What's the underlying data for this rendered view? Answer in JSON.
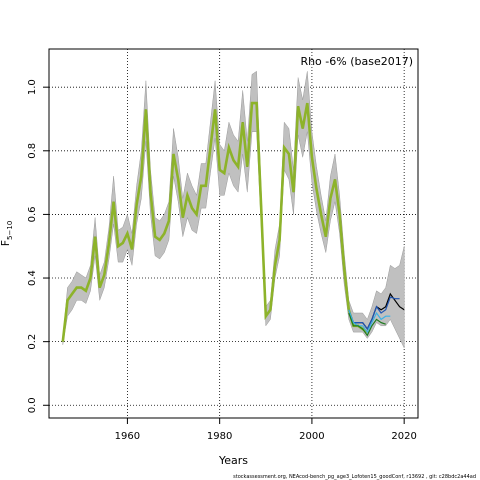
{
  "chart_data": {
    "type": "line",
    "xlabel": "Years",
    "ylabel_main": "F",
    "ylabel_sub": "5−10",
    "annotation": "Rho -6% (base2017)",
    "footer": "stockassessment.org, NEAcod-bench_pg_age3_Lofoten15_goodConf, r13692 , git: c28bdc2a44ad",
    "xlim": [
      1943,
      2023
    ],
    "ylim": [
      -0.04,
      1.12
    ],
    "xticks": [
      1960,
      1980,
      2000,
      2020
    ],
    "yticks": [
      0.0,
      0.2,
      0.4,
      0.6,
      0.8,
      1.0
    ],
    "ytick_labels": [
      "0.0",
      "0.2",
      "0.4",
      "0.6",
      "0.8",
      "1.0"
    ],
    "grid": "dotted",
    "colors": {
      "band": "#c0c0c0",
      "main": "#000000",
      "retro": "#8db32a",
      "peel1": "#1f55b4",
      "peel2": "#3cb1e6",
      "peel3": "#1e7a1e"
    },
    "main": {
      "x": [
        1946,
        1947,
        1948,
        1949,
        1950,
        1951,
        1952,
        1953,
        1954,
        1955,
        1956,
        1957,
        1958,
        1959,
        1960,
        1961,
        1962,
        1963,
        1964,
        1965,
        1966,
        1967,
        1968,
        1969,
        1970,
        1971,
        1972,
        1973,
        1974,
        1975,
        1976,
        1977,
        1978,
        1979,
        1980,
        1981,
        1982,
        1983,
        1984,
        1985,
        1986,
        1987,
        1988,
        1989,
        1990,
        1991,
        1992,
        1993,
        1994,
        1995,
        1996,
        1997,
        1998,
        1999,
        2000,
        2001,
        2002,
        2003,
        2004,
        2005,
        2006,
        2007,
        2008,
        2009,
        2010,
        2011,
        2012,
        2013,
        2014,
        2015,
        2016,
        2017,
        2018,
        2019,
        2020
      ],
      "y": [
        0.2,
        0.33,
        0.35,
        0.37,
        0.37,
        0.36,
        0.4,
        0.53,
        0.37,
        0.41,
        0.51,
        0.64,
        0.5,
        0.51,
        0.54,
        0.49,
        0.63,
        0.72,
        0.93,
        0.67,
        0.53,
        0.52,
        0.54,
        0.58,
        0.79,
        0.71,
        0.59,
        0.66,
        0.62,
        0.6,
        0.69,
        0.69,
        0.81,
        0.93,
        0.74,
        0.73,
        0.81,
        0.77,
        0.75,
        0.89,
        0.75,
        0.95,
        0.95,
        0.62,
        0.28,
        0.3,
        0.44,
        0.52,
        0.81,
        0.79,
        0.67,
        0.94,
        0.87,
        0.95,
        0.78,
        0.68,
        0.6,
        0.53,
        0.65,
        0.71,
        0.6,
        0.43,
        0.3,
        0.26,
        0.26,
        0.26,
        0.24,
        0.27,
        0.31,
        0.3,
        0.31,
        0.35,
        0.33,
        0.31,
        0.3
      ],
      "lower": [
        0.19,
        0.28,
        0.3,
        0.33,
        0.33,
        0.32,
        0.36,
        0.47,
        0.33,
        0.37,
        0.46,
        0.57,
        0.45,
        0.45,
        0.49,
        0.44,
        0.57,
        0.65,
        0.83,
        0.6,
        0.47,
        0.46,
        0.48,
        0.52,
        0.72,
        0.64,
        0.53,
        0.59,
        0.55,
        0.54,
        0.62,
        0.62,
        0.73,
        0.84,
        0.66,
        0.66,
        0.73,
        0.69,
        0.67,
        0.79,
        0.67,
        0.86,
        0.86,
        0.56,
        0.25,
        0.27,
        0.4,
        0.47,
        0.74,
        0.71,
        0.6,
        0.85,
        0.78,
        0.86,
        0.7,
        0.61,
        0.54,
        0.48,
        0.58,
        0.64,
        0.54,
        0.38,
        0.27,
        0.23,
        0.23,
        0.23,
        0.21,
        0.23,
        0.26,
        0.25,
        0.25,
        0.27,
        0.24,
        0.21,
        0.18
      ],
      "upper": [
        0.21,
        0.37,
        0.39,
        0.42,
        0.41,
        0.4,
        0.44,
        0.59,
        0.41,
        0.45,
        0.56,
        0.72,
        0.55,
        0.56,
        0.6,
        0.54,
        0.69,
        0.8,
        1.02,
        0.74,
        0.59,
        0.58,
        0.6,
        0.64,
        0.87,
        0.78,
        0.65,
        0.73,
        0.69,
        0.66,
        0.76,
        0.76,
        0.89,
        1.02,
        0.82,
        0.8,
        0.89,
        0.85,
        0.83,
        0.99,
        0.83,
        1.04,
        1.05,
        0.68,
        0.31,
        0.33,
        0.49,
        0.57,
        0.89,
        0.87,
        0.74,
        1.03,
        0.96,
        1.05,
        0.86,
        0.75,
        0.66,
        0.58,
        0.72,
        0.79,
        0.66,
        0.48,
        0.33,
        0.29,
        0.29,
        0.29,
        0.27,
        0.31,
        0.36,
        0.35,
        0.37,
        0.44,
        0.43,
        0.44,
        0.5
      ]
    },
    "series": [
      {
        "x": [
          1946,
          1947,
          1948,
          1949,
          1950,
          1951,
          1952,
          1953,
          1954,
          1955,
          1956,
          1957,
          1958,
          1959,
          1960,
          1961,
          1962,
          1963,
          1964,
          1965,
          1966,
          1967,
          1968,
          1969,
          1970,
          1971,
          1972,
          1973,
          1974,
          1975,
          1976,
          1977,
          1978,
          1979,
          1980,
          1981,
          1982,
          1983,
          1984,
          1985,
          1986,
          1987,
          1988,
          1989,
          1990,
          1991,
          1992,
          1993,
          1994,
          1995,
          1996,
          1997,
          1998,
          1999,
          2000,
          2001,
          2002,
          2003,
          2004,
          2005,
          2006,
          2007,
          2008,
          2009,
          2010,
          2011,
          2012
        ],
        "y": [
          0.2,
          0.33,
          0.35,
          0.37,
          0.37,
          0.36,
          0.4,
          0.53,
          0.37,
          0.41,
          0.51,
          0.64,
          0.5,
          0.51,
          0.54,
          0.49,
          0.63,
          0.72,
          0.93,
          0.67,
          0.53,
          0.52,
          0.54,
          0.58,
          0.79,
          0.71,
          0.59,
          0.66,
          0.62,
          0.6,
          0.69,
          0.69,
          0.81,
          0.93,
          0.74,
          0.73,
          0.81,
          0.77,
          0.75,
          0.89,
          0.75,
          0.95,
          0.95,
          0.62,
          0.28,
          0.3,
          0.44,
          0.52,
          0.81,
          0.79,
          0.67,
          0.94,
          0.87,
          0.95,
          0.78,
          0.68,
          0.6,
          0.53,
          0.65,
          0.71,
          0.6,
          0.43,
          0.3,
          0.25,
          0.25,
          0.24,
          0.23
        ],
        "color": "#8db32a",
        "width": 2.6
      },
      {
        "x": [
          2008,
          2009,
          2010,
          2011,
          2012,
          2013,
          2014,
          2015,
          2016,
          2017,
          2018,
          2019
        ],
        "y": [
          0.3,
          0.26,
          0.26,
          0.26,
          0.24,
          0.27,
          0.31,
          0.29,
          0.3,
          0.34,
          0.335,
          0.335
        ],
        "color": "#1f55b4",
        "width": 1.2
      },
      {
        "x": [
          2008,
          2009,
          2010,
          2011,
          2012,
          2013,
          2014,
          2015,
          2016,
          2017
        ],
        "y": [
          0.3,
          0.26,
          0.25,
          0.25,
          0.23,
          0.26,
          0.29,
          0.27,
          0.28,
          0.28
        ],
        "color": "#3cb1e6",
        "width": 1.2
      },
      {
        "x": [
          2008,
          2009,
          2010,
          2011,
          2012,
          2013,
          2014,
          2015,
          2016
        ],
        "y": [
          0.29,
          0.25,
          0.25,
          0.24,
          0.22,
          0.25,
          0.27,
          0.26,
          0.255
        ],
        "color": "#1e7a1e",
        "width": 1.2
      }
    ]
  }
}
